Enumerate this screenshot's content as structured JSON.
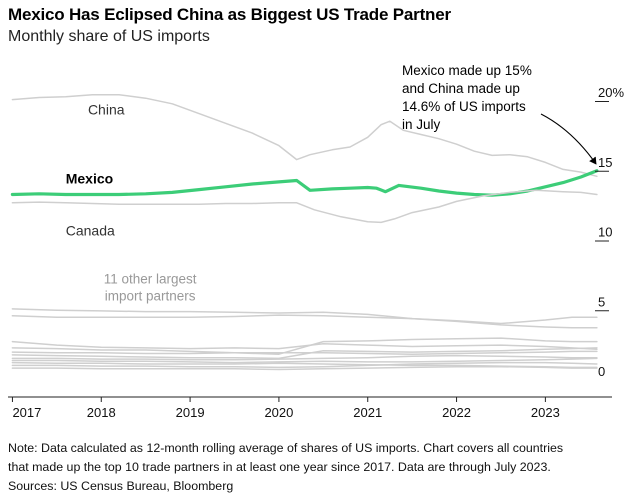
{
  "header": {
    "title": "Mexico Has Eclipsed China as Biggest US Trade Partner",
    "subtitle": "Monthly share of US imports"
  },
  "footer": {
    "note_line1": "Note: Data calculated as 12-month rolling average of shares of US imports. Chart covers all countries",
    "note_line2": "that made up the top 10 trade partners in at least one year since 2017. Data are through July 2023.",
    "sources": "Sources: US Census Bureau, Bloomberg"
  },
  "colors": {
    "mexico": "#3ccd78",
    "others": "#cfcfcf",
    "axis": "#222222",
    "annotation": "#000000"
  },
  "chart_data": {
    "type": "line",
    "title": "Mexico Has Eclipsed China as Biggest US Trade Partner",
    "subtitle": "Monthly share of US imports",
    "xlabel": "",
    "ylabel": "",
    "xlim": [
      2016.95,
      2023.75
    ],
    "ylim": [
      0,
      20
    ],
    "x_ticks": [
      2017,
      2018,
      2019,
      2020,
      2021,
      2022,
      2023
    ],
    "x_tick_labels": [
      "2017",
      "2018",
      "2019",
      "2020",
      "2021",
      "2022",
      "2023"
    ],
    "y_ticks": [
      {
        "value": 20,
        "label": "20%"
      },
      {
        "value": 15,
        "label": "15"
      },
      {
        "value": 10,
        "label": "10"
      },
      {
        "value": 5,
        "label": "5"
      },
      {
        "value": 0,
        "label": "0"
      }
    ],
    "grid": false,
    "series": [
      {
        "name": "China",
        "label": "China",
        "highlight": false,
        "points": [
          [
            2017.0,
            20.1
          ],
          [
            2017.3,
            20.25
          ],
          [
            2017.6,
            20.3
          ],
          [
            2017.9,
            20.45
          ],
          [
            2018.2,
            20.45
          ],
          [
            2018.5,
            20.2
          ],
          [
            2018.8,
            19.8
          ],
          [
            2019.1,
            19.1
          ],
          [
            2019.4,
            18.4
          ],
          [
            2019.7,
            17.7
          ],
          [
            2020.0,
            16.8
          ],
          [
            2020.2,
            15.8
          ],
          [
            2020.35,
            16.15
          ],
          [
            2020.6,
            16.5
          ],
          [
            2020.8,
            16.7
          ],
          [
            2021.0,
            17.4
          ],
          [
            2021.15,
            18.3
          ],
          [
            2021.25,
            18.55
          ],
          [
            2021.4,
            17.9
          ],
          [
            2021.6,
            17.6
          ],
          [
            2021.8,
            17.3
          ],
          [
            2022.0,
            16.9
          ],
          [
            2022.2,
            16.4
          ],
          [
            2022.4,
            16.1
          ],
          [
            2022.6,
            16.15
          ],
          [
            2022.8,
            16.0
          ],
          [
            2023.0,
            15.6
          ],
          [
            2023.2,
            15.1
          ],
          [
            2023.4,
            14.9
          ],
          [
            2023.58,
            14.6
          ]
        ]
      },
      {
        "name": "Mexico",
        "label": "Mexico",
        "highlight": true,
        "points": [
          [
            2017.0,
            13.3
          ],
          [
            2017.3,
            13.35
          ],
          [
            2017.6,
            13.3
          ],
          [
            2017.9,
            13.3
          ],
          [
            2018.2,
            13.3
          ],
          [
            2018.5,
            13.35
          ],
          [
            2018.8,
            13.45
          ],
          [
            2019.1,
            13.65
          ],
          [
            2019.4,
            13.85
          ],
          [
            2019.7,
            14.05
          ],
          [
            2020.0,
            14.2
          ],
          [
            2020.2,
            14.3
          ],
          [
            2020.35,
            13.6
          ],
          [
            2020.6,
            13.7
          ],
          [
            2020.8,
            13.75
          ],
          [
            2021.0,
            13.8
          ],
          [
            2021.1,
            13.75
          ],
          [
            2021.2,
            13.5
          ],
          [
            2021.35,
            13.95
          ],
          [
            2021.6,
            13.75
          ],
          [
            2021.8,
            13.55
          ],
          [
            2022.0,
            13.4
          ],
          [
            2022.2,
            13.3
          ],
          [
            2022.4,
            13.25
          ],
          [
            2022.6,
            13.35
          ],
          [
            2022.8,
            13.55
          ],
          [
            2023.0,
            13.85
          ],
          [
            2023.2,
            14.15
          ],
          [
            2023.4,
            14.55
          ],
          [
            2023.58,
            15.0
          ]
        ]
      },
      {
        "name": "Canada",
        "label": "Canada",
        "highlight": false,
        "points": [
          [
            2017.0,
            12.7
          ],
          [
            2017.3,
            12.75
          ],
          [
            2017.6,
            12.7
          ],
          [
            2017.9,
            12.65
          ],
          [
            2018.2,
            12.6
          ],
          [
            2018.5,
            12.6
          ],
          [
            2018.8,
            12.6
          ],
          [
            2019.1,
            12.6
          ],
          [
            2019.4,
            12.65
          ],
          [
            2019.7,
            12.65
          ],
          [
            2020.0,
            12.7
          ],
          [
            2020.2,
            12.7
          ],
          [
            2020.4,
            12.2
          ],
          [
            2020.7,
            11.7
          ],
          [
            2021.0,
            11.35
          ],
          [
            2021.15,
            11.3
          ],
          [
            2021.3,
            11.55
          ],
          [
            2021.5,
            12.0
          ],
          [
            2021.8,
            12.4
          ],
          [
            2022.0,
            12.8
          ],
          [
            2022.3,
            13.2
          ],
          [
            2022.6,
            13.45
          ],
          [
            2022.9,
            13.6
          ],
          [
            2023.2,
            13.5
          ],
          [
            2023.4,
            13.45
          ],
          [
            2023.58,
            13.3
          ]
        ]
      },
      {
        "name": "Other partner 1",
        "label": "",
        "highlight": false,
        "points": [
          [
            2017.0,
            5.1
          ],
          [
            2017.5,
            5.0
          ],
          [
            2018.0,
            4.95
          ],
          [
            2018.5,
            4.9
          ],
          [
            2019.0,
            4.9
          ],
          [
            2019.5,
            4.85
          ],
          [
            2020.0,
            4.8
          ],
          [
            2020.5,
            4.85
          ],
          [
            2021.0,
            4.7
          ],
          [
            2021.5,
            4.4
          ],
          [
            2022.0,
            4.25
          ],
          [
            2022.5,
            4.05
          ],
          [
            2023.0,
            4.3
          ],
          [
            2023.3,
            4.5
          ],
          [
            2023.58,
            4.5
          ]
        ]
      },
      {
        "name": "Other partner 2",
        "label": "",
        "highlight": false,
        "points": [
          [
            2017.0,
            4.6
          ],
          [
            2017.5,
            4.5
          ],
          [
            2018.0,
            4.5
          ],
          [
            2018.5,
            4.5
          ],
          [
            2019.0,
            4.5
          ],
          [
            2019.5,
            4.55
          ],
          [
            2020.0,
            4.65
          ],
          [
            2020.5,
            4.6
          ],
          [
            2021.0,
            4.5
          ],
          [
            2021.5,
            4.4
          ],
          [
            2022.0,
            4.2
          ],
          [
            2022.5,
            3.95
          ],
          [
            2023.0,
            3.8
          ],
          [
            2023.3,
            3.75
          ],
          [
            2023.58,
            3.75
          ]
        ]
      },
      {
        "name": "Other partner 3",
        "label": "",
        "highlight": false,
        "points": [
          [
            2017.0,
            2.75
          ],
          [
            2017.5,
            2.5
          ],
          [
            2018.0,
            2.35
          ],
          [
            2018.5,
            2.3
          ],
          [
            2019.0,
            2.25
          ],
          [
            2019.5,
            2.3
          ],
          [
            2020.0,
            2.25
          ],
          [
            2020.5,
            2.6
          ],
          [
            2021.0,
            2.5
          ],
          [
            2021.5,
            2.4
          ],
          [
            2022.0,
            2.45
          ],
          [
            2022.5,
            2.5
          ],
          [
            2023.0,
            2.4
          ],
          [
            2023.3,
            2.3
          ],
          [
            2023.58,
            2.2
          ]
        ]
      },
      {
        "name": "Other partner 4",
        "label": "",
        "highlight": false,
        "points": [
          [
            2017.0,
            2.3
          ],
          [
            2017.5,
            2.25
          ],
          [
            2018.0,
            2.15
          ],
          [
            2018.5,
            2.15
          ],
          [
            2019.0,
            2.05
          ],
          [
            2019.5,
            1.95
          ],
          [
            2020.0,
            1.85
          ],
          [
            2020.5,
            2.75
          ],
          [
            2021.0,
            2.8
          ],
          [
            2021.5,
            2.9
          ],
          [
            2022.0,
            2.95
          ],
          [
            2022.5,
            3.0
          ],
          [
            2023.0,
            2.8
          ],
          [
            2023.3,
            2.75
          ],
          [
            2023.58,
            2.75
          ]
        ]
      },
      {
        "name": "Other partner 5",
        "label": "",
        "highlight": false,
        "points": [
          [
            2017.0,
            2.0
          ],
          [
            2017.5,
            1.95
          ],
          [
            2018.0,
            1.95
          ],
          [
            2018.5,
            1.9
          ],
          [
            2019.0,
            1.9
          ],
          [
            2019.5,
            1.95
          ],
          [
            2020.0,
            1.95
          ],
          [
            2020.5,
            1.95
          ],
          [
            2021.0,
            1.9
          ],
          [
            2021.5,
            1.85
          ],
          [
            2022.0,
            1.9
          ],
          [
            2022.5,
            1.95
          ],
          [
            2023.0,
            2.0
          ],
          [
            2023.3,
            2.05
          ],
          [
            2023.58,
            2.05
          ]
        ]
      },
      {
        "name": "Other partner 6",
        "label": "",
        "highlight": false,
        "points": [
          [
            2017.0,
            1.8
          ],
          [
            2017.5,
            1.75
          ],
          [
            2018.0,
            1.7
          ],
          [
            2018.5,
            1.65
          ],
          [
            2019.0,
            1.6
          ],
          [
            2019.5,
            1.6
          ],
          [
            2020.0,
            1.55
          ],
          [
            2020.5,
            2.1
          ],
          [
            2021.0,
            2.05
          ],
          [
            2021.5,
            2.0
          ],
          [
            2022.0,
            2.05
          ],
          [
            2022.5,
            2.1
          ],
          [
            2023.0,
            2.2
          ],
          [
            2023.3,
            2.25
          ],
          [
            2023.58,
            2.3
          ]
        ]
      },
      {
        "name": "Other partner 7",
        "label": "",
        "highlight": false,
        "points": [
          [
            2017.0,
            1.55
          ],
          [
            2017.5,
            1.55
          ],
          [
            2018.0,
            1.5
          ],
          [
            2018.5,
            1.5
          ],
          [
            2019.0,
            1.45
          ],
          [
            2019.5,
            1.45
          ],
          [
            2020.0,
            1.5
          ],
          [
            2020.5,
            1.55
          ],
          [
            2021.0,
            1.6
          ],
          [
            2021.5,
            1.7
          ],
          [
            2022.0,
            1.75
          ],
          [
            2022.5,
            1.7
          ],
          [
            2023.0,
            1.65
          ],
          [
            2023.3,
            1.6
          ],
          [
            2023.58,
            1.6
          ]
        ]
      },
      {
        "name": "Other partner 8",
        "label": "",
        "highlight": false,
        "points": [
          [
            2017.0,
            1.4
          ],
          [
            2017.5,
            1.4
          ],
          [
            2018.0,
            1.35
          ],
          [
            2018.5,
            1.35
          ],
          [
            2019.0,
            1.3
          ],
          [
            2019.5,
            1.25
          ],
          [
            2020.0,
            1.3
          ],
          [
            2020.5,
            1.35
          ],
          [
            2021.0,
            1.3
          ],
          [
            2021.5,
            1.3
          ],
          [
            2022.0,
            1.35
          ],
          [
            2022.5,
            1.4
          ],
          [
            2023.0,
            1.45
          ],
          [
            2023.3,
            1.5
          ],
          [
            2023.58,
            1.55
          ]
        ]
      },
      {
        "name": "Other partner 9",
        "label": "",
        "highlight": false,
        "points": [
          [
            2017.0,
            1.25
          ],
          [
            2017.5,
            1.2
          ],
          [
            2018.0,
            1.2
          ],
          [
            2018.5,
            1.15
          ],
          [
            2019.0,
            1.15
          ],
          [
            2019.5,
            1.15
          ],
          [
            2020.0,
            1.2
          ],
          [
            2020.5,
            1.15
          ],
          [
            2021.0,
            1.1
          ],
          [
            2021.5,
            1.05
          ],
          [
            2022.0,
            1.05
          ],
          [
            2022.5,
            1.0
          ],
          [
            2023.0,
            0.95
          ],
          [
            2023.3,
            0.9
          ],
          [
            2023.58,
            0.9
          ]
        ]
      },
      {
        "name": "Other partner 10",
        "label": "",
        "highlight": false,
        "points": [
          [
            2017.0,
            1.05
          ],
          [
            2017.5,
            1.05
          ],
          [
            2018.0,
            1.0
          ],
          [
            2018.5,
            1.0
          ],
          [
            2019.0,
            0.95
          ],
          [
            2019.5,
            0.95
          ],
          [
            2020.0,
            0.9
          ],
          [
            2020.5,
            0.95
          ],
          [
            2021.0,
            1.05
          ],
          [
            2021.5,
            1.15
          ],
          [
            2022.0,
            1.2
          ],
          [
            2022.5,
            1.25
          ],
          [
            2023.0,
            1.25
          ],
          [
            2023.3,
            1.2
          ],
          [
            2023.58,
            1.15
          ]
        ]
      },
      {
        "name": "Other partner 11",
        "label": "",
        "highlight": false,
        "points": [
          [
            2017.0,
            0.85
          ],
          [
            2017.5,
            0.85
          ],
          [
            2018.0,
            0.8
          ],
          [
            2018.5,
            0.8
          ],
          [
            2019.0,
            0.8
          ],
          [
            2019.5,
            0.8
          ],
          [
            2020.0,
            0.75
          ],
          [
            2020.5,
            0.8
          ],
          [
            2021.0,
            0.85
          ],
          [
            2021.5,
            0.9
          ],
          [
            2022.0,
            0.95
          ],
          [
            2022.5,
            0.95
          ],
          [
            2023.0,
            0.9
          ],
          [
            2023.3,
            0.85
          ],
          [
            2023.58,
            0.85
          ]
        ]
      }
    ],
    "group_label": "11 other largest import partners",
    "group_label_lines": [
      "11 other largest",
      "import partners"
    ],
    "annotation": {
      "text_lines": [
        "Mexico made up 15%",
        "and China made up",
        "14.6% of US imports",
        "in July"
      ],
      "target": [
        2023.58,
        15.0
      ]
    }
  }
}
